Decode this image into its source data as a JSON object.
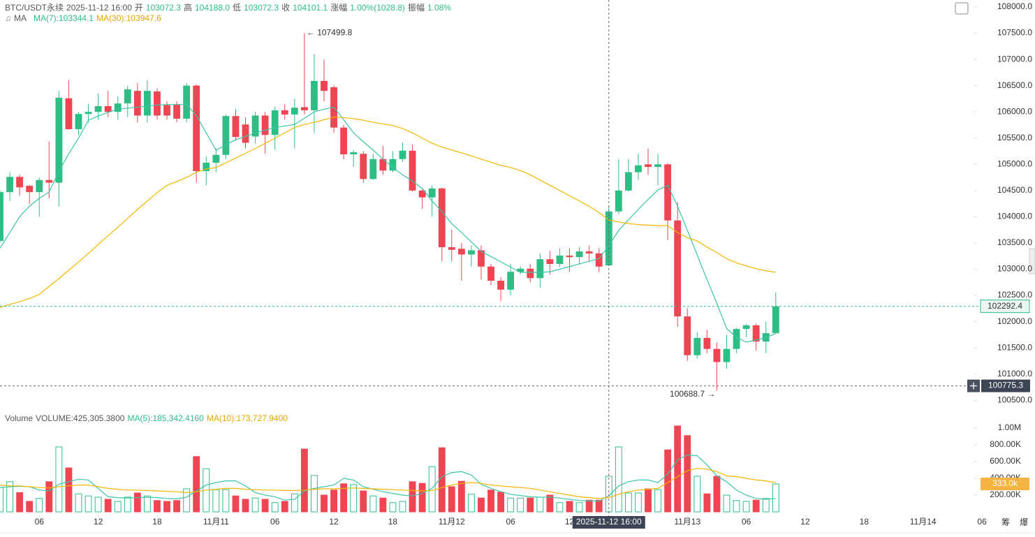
{
  "chart_data": {
    "type": "candlestick",
    "title": "BTC/USDT永续",
    "header": {
      "time": "2025-11-12 16:00",
      "open_label": "开",
      "open": "103072.3",
      "high_label": "高",
      "high": "104188.0",
      "low_label": "低",
      "low": "103072.3",
      "close_label": "收",
      "close": "104101.1",
      "change_label": "涨幅",
      "change": "1.00%(1028.8)",
      "amplitude_label": "振幅",
      "amplitude": "1.08%"
    },
    "ma_title": "MA",
    "up_color": "#2ebd85",
    "down_color": "#ef4452",
    "x": [
      "2025-11-10 02:00",
      "2025-11-10 03:00",
      "2025-11-10 04:00",
      "2025-11-10 05:00",
      "2025-11-10 06:00",
      "2025-11-10 07:00",
      "2025-11-10 08:00",
      "2025-11-10 09:00",
      "2025-11-10 10:00",
      "2025-11-10 11:00",
      "2025-11-10 12:00",
      "2025-11-10 13:00",
      "2025-11-10 14:00",
      "2025-11-10 15:00",
      "2025-11-10 16:00",
      "2025-11-10 17:00",
      "2025-11-10 18:00",
      "2025-11-10 19:00",
      "2025-11-10 20:00",
      "2025-11-10 21:00",
      "2025-11-10 22:00",
      "2025-11-10 23:00",
      "2025-11-11 00:00",
      "2025-11-11 01:00",
      "2025-11-11 02:00",
      "2025-11-11 03:00",
      "2025-11-11 04:00",
      "2025-11-11 05:00",
      "2025-11-11 06:00",
      "2025-11-11 07:00",
      "2025-11-11 08:00",
      "2025-11-11 09:00",
      "2025-11-11 10:00",
      "2025-11-11 11:00",
      "2025-11-11 12:00",
      "2025-11-11 13:00",
      "2025-11-11 14:00",
      "2025-11-11 15:00",
      "2025-11-11 16:00",
      "2025-11-11 17:00",
      "2025-11-11 18:00",
      "2025-11-11 19:00",
      "2025-11-11 20:00",
      "2025-11-11 21:00",
      "2025-11-11 22:00",
      "2025-11-11 23:00",
      "2025-11-12 00:00",
      "2025-11-12 01:00",
      "2025-11-12 02:00",
      "2025-11-12 03:00",
      "2025-11-12 04:00",
      "2025-11-12 05:00",
      "2025-11-12 06:00",
      "2025-11-12 07:00",
      "2025-11-12 08:00",
      "2025-11-12 09:00",
      "2025-11-12 10:00",
      "2025-11-12 11:00",
      "2025-11-12 12:00",
      "2025-11-12 13:00",
      "2025-11-12 14:00",
      "2025-11-12 15:00",
      "2025-11-12 16:00",
      "2025-11-12 17:00",
      "2025-11-12 18:00",
      "2025-11-12 19:00",
      "2025-11-12 20:00",
      "2025-11-12 21:00",
      "2025-11-12 22:00",
      "2025-11-12 23:00",
      "2025-11-13 00:00",
      "2025-11-13 01:00",
      "2025-11-13 02:00",
      "2025-11-13 03:00",
      "2025-11-13 04:00",
      "2025-11-13 05:00",
      "2025-11-13 06:00",
      "2025-11-13 07:00",
      "2025-11-13 08:00",
      "2025-11-13 09:00"
    ],
    "open": [
      103540,
      104470,
      104760,
      104590,
      104470,
      104700,
      104650,
      106260,
      105670,
      105960,
      106000,
      106110,
      106000,
      106160,
      106400,
      105930,
      106390,
      106130,
      106140,
      105870,
      106500,
      104870,
      105030,
      105180,
      105920,
      105760,
      105530,
      105930,
      105560,
      106030,
      105950,
      106090,
      106030,
      106590,
      106470,
      105700,
      105190,
      105200,
      104720,
      105100,
      104880,
      105100,
      105260,
      104500,
      104370,
      104540,
      103420,
      103390,
      103280,
      103360,
      103050,
      102780,
      102610,
      102950,
      103010,
      102830,
      103190,
      103100,
      103260,
      103230,
      103340,
      103300,
      103072.3,
      104101.1,
      104500,
      104850,
      105000,
      104950,
      105000,
      103930,
      102100,
      101360,
      101690,
      101480,
      101230,
      101480,
      101860,
      101930,
      101620,
      101780
    ],
    "high": [
      104500,
      104850,
      104800,
      104600,
      104750,
      105430,
      106400,
      106600,
      106000,
      106150,
      106350,
      106400,
      106300,
      106500,
      106550,
      106600,
      106450,
      106200,
      106200,
      106550,
      106520,
      105150,
      105300,
      105950,
      106050,
      105900,
      106000,
      106000,
      106100,
      106150,
      106250,
      107499.8,
      107100,
      107000,
      106500,
      105750,
      105270,
      105250,
      105200,
      105350,
      105250,
      105420,
      105380,
      104520,
      104600,
      104560,
      103750,
      103500,
      103450,
      103450,
      103100,
      102850,
      103100,
      103050,
      103100,
      103300,
      103350,
      103400,
      103400,
      103420,
      103450,
      103400,
      104188,
      105100,
      105100,
      105200,
      105300,
      105200,
      105020,
      104280,
      102260,
      101800,
      101850,
      101600,
      101750,
      101880,
      101960,
      101960,
      102000,
      102560
    ],
    "low": [
      103500,
      104300,
      104400,
      104250,
      104000,
      104350,
      104200,
      105660,
      105560,
      105800,
      105850,
      105900,
      105850,
      105900,
      105800,
      105800,
      105850,
      105850,
      105800,
      105800,
      104650,
      104600,
      104850,
      105100,
      105450,
      105300,
      105400,
      105200,
      105280,
      105850,
      105300,
      105950,
      105600,
      106200,
      105600,
      105100,
      104950,
      104650,
      104700,
      104800,
      104850,
      105050,
      104480,
      104150,
      104000,
      103150,
      103150,
      102780,
      103050,
      102800,
      102700,
      102400,
      102500,
      102900,
      102750,
      102650,
      102900,
      103050,
      102950,
      103100,
      103150,
      102950,
      103072.3,
      104050,
      104480,
      104700,
      104800,
      104600,
      103550,
      101900,
      101250,
      101300,
      101400,
      100688.7,
      101100,
      101400,
      101700,
      101450,
      101400,
      101780
    ],
    "close": [
      104470,
      104760,
      104560,
      104470,
      104700,
      104650,
      106270,
      105670,
      105960,
      106000,
      106110,
      106000,
      106160,
      106430,
      105930,
      106400,
      105930,
      105930,
      105870,
      106500,
      104870,
      105030,
      105180,
      105920,
      105520,
      105410,
      105930,
      105560,
      106030,
      105950,
      106080,
      106030,
      106590,
      106400,
      105700,
      105190,
      105230,
      104720,
      105100,
      104880,
      105100,
      105260,
      104500,
      104370,
      104540,
      103420,
      103370,
      103280,
      103360,
      103050,
      102780,
      102610,
      102950,
      103010,
      102830,
      103190,
      103100,
      103260,
      103230,
      103340,
      103300,
      103050,
      104101.1,
      104500,
      104850,
      104980,
      104950,
      105000,
      103930,
      102100,
      101360,
      101690,
      101480,
      101230,
      101480,
      101860,
      101930,
      101620,
      101780,
      102292.4
    ],
    "series": [
      {
        "name": "MA(7):103344.1",
        "color": "#3cc4a8",
        "values": [
          103400,
          103700,
          104000,
          104200,
          104350,
          104470,
          104870,
          105200,
          105500,
          105840,
          105920,
          105990,
          106050,
          106070,
          106090,
          106110,
          106130,
          106140,
          106140,
          106140,
          105930,
          105600,
          105270,
          105370,
          105470,
          105530,
          105600,
          105650,
          105700,
          105730,
          105760,
          105880,
          106000,
          106050,
          106090,
          105850,
          105600,
          105430,
          105270,
          105100,
          104940,
          104800,
          104680,
          104540,
          104300,
          104100,
          103870,
          103700,
          103520,
          103340,
          103240,
          103140,
          103040,
          102940,
          102940,
          102940,
          102950,
          103000,
          103050,
          103100,
          103150,
          103200,
          103450,
          103740,
          103940,
          104140,
          104330,
          104510,
          104600,
          104200,
          103740,
          103270,
          102800,
          102350,
          101870,
          101700,
          101610,
          101650,
          101700,
          101770
        ]
      },
      {
        "name": "MA(30):103947.6",
        "color": "#f5b700",
        "values": [
          102270,
          102330,
          102380,
          102440,
          102520,
          102670,
          102820,
          102980,
          103140,
          103300,
          103470,
          103640,
          103800,
          103970,
          104140,
          104300,
          104460,
          104600,
          104670,
          104750,
          104850,
          104910,
          104940,
          105030,
          105120,
          105210,
          105300,
          105400,
          105500,
          105600,
          105700,
          105760,
          105800,
          105850,
          105900,
          105890,
          105870,
          105840,
          105800,
          105770,
          105740,
          105680,
          105600,
          105500,
          105400,
          105330,
          105270,
          105220,
          105160,
          105100,
          105040,
          104980,
          104940,
          104880,
          104800,
          104700,
          104600,
          104500,
          104400,
          104300,
          104200,
          104080,
          103940,
          103900,
          103870,
          103850,
          103840,
          103830,
          103830,
          103700,
          103600,
          103540,
          103420,
          103320,
          103200,
          103120,
          103060,
          103010,
          102970,
          102940
        ]
      }
    ],
    "xlim": [
      "2025-11-10 02:00",
      "2025-11-14 11:24"
    ],
    "xticks": [
      {
        "value": "2025-11-10 06:00",
        "label": "06"
      },
      {
        "value": "2025-11-10 12:00",
        "label": "12"
      },
      {
        "value": "2025-11-10 18:00",
        "label": "18"
      },
      {
        "value": "2025-11-11 00:00",
        "label": "11月11"
      },
      {
        "value": "2025-11-11 06:00",
        "label": "06"
      },
      {
        "value": "2025-11-11 12:00",
        "label": "12"
      },
      {
        "value": "2025-11-11 18:00",
        "label": "18"
      },
      {
        "value": "2025-11-12 00:00",
        "label": "11月12"
      },
      {
        "value": "2025-11-12 06:00",
        "label": "06"
      },
      {
        "value": "2025-11-12 12:00",
        "label": "12"
      },
      {
        "value": "2025-11-12 18:00",
        "label": "18"
      },
      {
        "value": "2025-11-13 00:00",
        "label": "11月13"
      },
      {
        "value": "2025-11-13 06:00",
        "label": "06"
      },
      {
        "value": "2025-11-13 12:00",
        "label": "12"
      },
      {
        "value": "2025-11-13 18:00",
        "label": "18"
      },
      {
        "value": "2025-11-14 00:00",
        "label": "11月14"
      },
      {
        "value": "2025-11-14 06:00",
        "label": "06"
      }
    ],
    "ylim": [
      100410,
      108133
    ],
    "yticks": [
      {
        "value": 100500,
        "label": "100500.0"
      },
      {
        "value": 101000,
        "label": "101000.0"
      },
      {
        "value": 101500,
        "label": "101500.0"
      },
      {
        "value": 102000,
        "label": "102000.0"
      },
      {
        "value": 102500,
        "label": "102500.0"
      },
      {
        "value": 103000,
        "label": "103000.0"
      },
      {
        "value": 103500,
        "label": "103500.0"
      },
      {
        "value": 104000,
        "label": "104000.0"
      },
      {
        "value": 104500,
        "label": "104500.0"
      },
      {
        "value": 105000,
        "label": "105000.0"
      },
      {
        "value": 105500,
        "label": "105500.0"
      },
      {
        "value": 106000,
        "label": "106000.0"
      },
      {
        "value": 106500,
        "label": "106500.0"
      },
      {
        "value": 107000,
        "label": "107000.0"
      },
      {
        "value": 107500,
        "label": "107500.0"
      },
      {
        "value": 108000,
        "label": "108000.0"
      }
    ],
    "high_annotation": "← 107499.8",
    "low_annotation": "100688.7 →",
    "last_price": 102292.4,
    "crosshair": {
      "x": "2025-11-12 16:00",
      "price": 100775.3
    },
    "volume": {
      "title": "Volume",
      "legend": "VOLUME:425,305.3800",
      "values": [
        290000,
        360000,
        230000,
        125000,
        160000,
        360000,
        775000,
        525000,
        215000,
        190000,
        175000,
        150000,
        125000,
        175000,
        225000,
        190000,
        135000,
        125000,
        135000,
        275000,
        660000,
        515000,
        265000,
        265000,
        190000,
        150000,
        165000,
        150000,
        110000,
        125000,
        215000,
        750000,
        435000,
        200000,
        260000,
        335000,
        325000,
        250000,
        190000,
        165000,
        110000,
        125000,
        360000,
        340000,
        540000,
        765000,
        300000,
        365000,
        210000,
        165000,
        260000,
        235000,
        165000,
        165000,
        165000,
        175000,
        200000,
        110000,
        125000,
        110000,
        140000,
        140000,
        425305.38,
        775000,
        225000,
        225000,
        275000,
        265000,
        740000,
        1025000,
        910000,
        425000,
        215000,
        425000,
        200000,
        135000,
        125000,
        140000,
        160000,
        333000
      ],
      "series": [
        {
          "name": "MA(5):185,342.4160",
          "color": "#3cc4a8",
          "values": [
            290000,
            300000,
            305000,
            300000,
            260000,
            250000,
            330000,
            360000,
            390000,
            380000,
            280000,
            180000,
            170000,
            165000,
            170000,
            175000,
            170000,
            160000,
            155000,
            175000,
            250000,
            320000,
            350000,
            370000,
            370000,
            310000,
            230000,
            200000,
            180000,
            140000,
            150000,
            250000,
            280000,
            300000,
            320000,
            400000,
            380000,
            300000,
            270000,
            240000,
            220000,
            200000,
            190000,
            220000,
            280000,
            420000,
            470000,
            480000,
            440000,
            330000,
            280000,
            240000,
            210000,
            195000,
            180000,
            175000,
            175000,
            165000,
            150000,
            135000,
            130000,
            130000,
            190000,
            310000,
            360000,
            380000,
            380000,
            350000,
            450000,
            620000,
            680000,
            670000,
            560000,
            430000,
            360000,
            260000,
            200000,
            160000,
            150000,
            160000
          ]
        },
        {
          "name": "MA(10):173,727.9400",
          "color": "#f5b700",
          "values": [
            320000,
            310000,
            310000,
            300000,
            290000,
            285000,
            300000,
            310000,
            320000,
            320000,
            300000,
            280000,
            270000,
            260000,
            260000,
            255000,
            250000,
            245000,
            240000,
            230000,
            240000,
            260000,
            270000,
            280000,
            280000,
            270000,
            265000,
            260000,
            260000,
            255000,
            255000,
            260000,
            270000,
            275000,
            275000,
            280000,
            285000,
            280000,
            275000,
            270000,
            265000,
            260000,
            255000,
            250000,
            255000,
            290000,
            320000,
            340000,
            350000,
            340000,
            320000,
            310000,
            300000,
            290000,
            280000,
            260000,
            240000,
            220000,
            200000,
            180000,
            170000,
            160000,
            170000,
            210000,
            240000,
            260000,
            270000,
            280000,
            350000,
            420000,
            490000,
            520000,
            510000,
            480000,
            430000,
            420000,
            400000,
            380000,
            370000,
            350000
          ]
        }
      ],
      "ylim": [
        0,
        1150000
      ],
      "yticks": [
        {
          "value": 200000,
          "label": "200.00K"
        },
        {
          "value": 400000,
          "label": "400.00K"
        },
        {
          "value": 600000,
          "label": "600.00K"
        },
        {
          "value": 800000,
          "label": "800.00K"
        },
        {
          "value": 1000000,
          "label": "1.00M"
        }
      ],
      "tag": {
        "value": 333000,
        "label": "333.0k"
      }
    },
    "footer_icons": [
      "筹",
      "爆"
    ]
  }
}
